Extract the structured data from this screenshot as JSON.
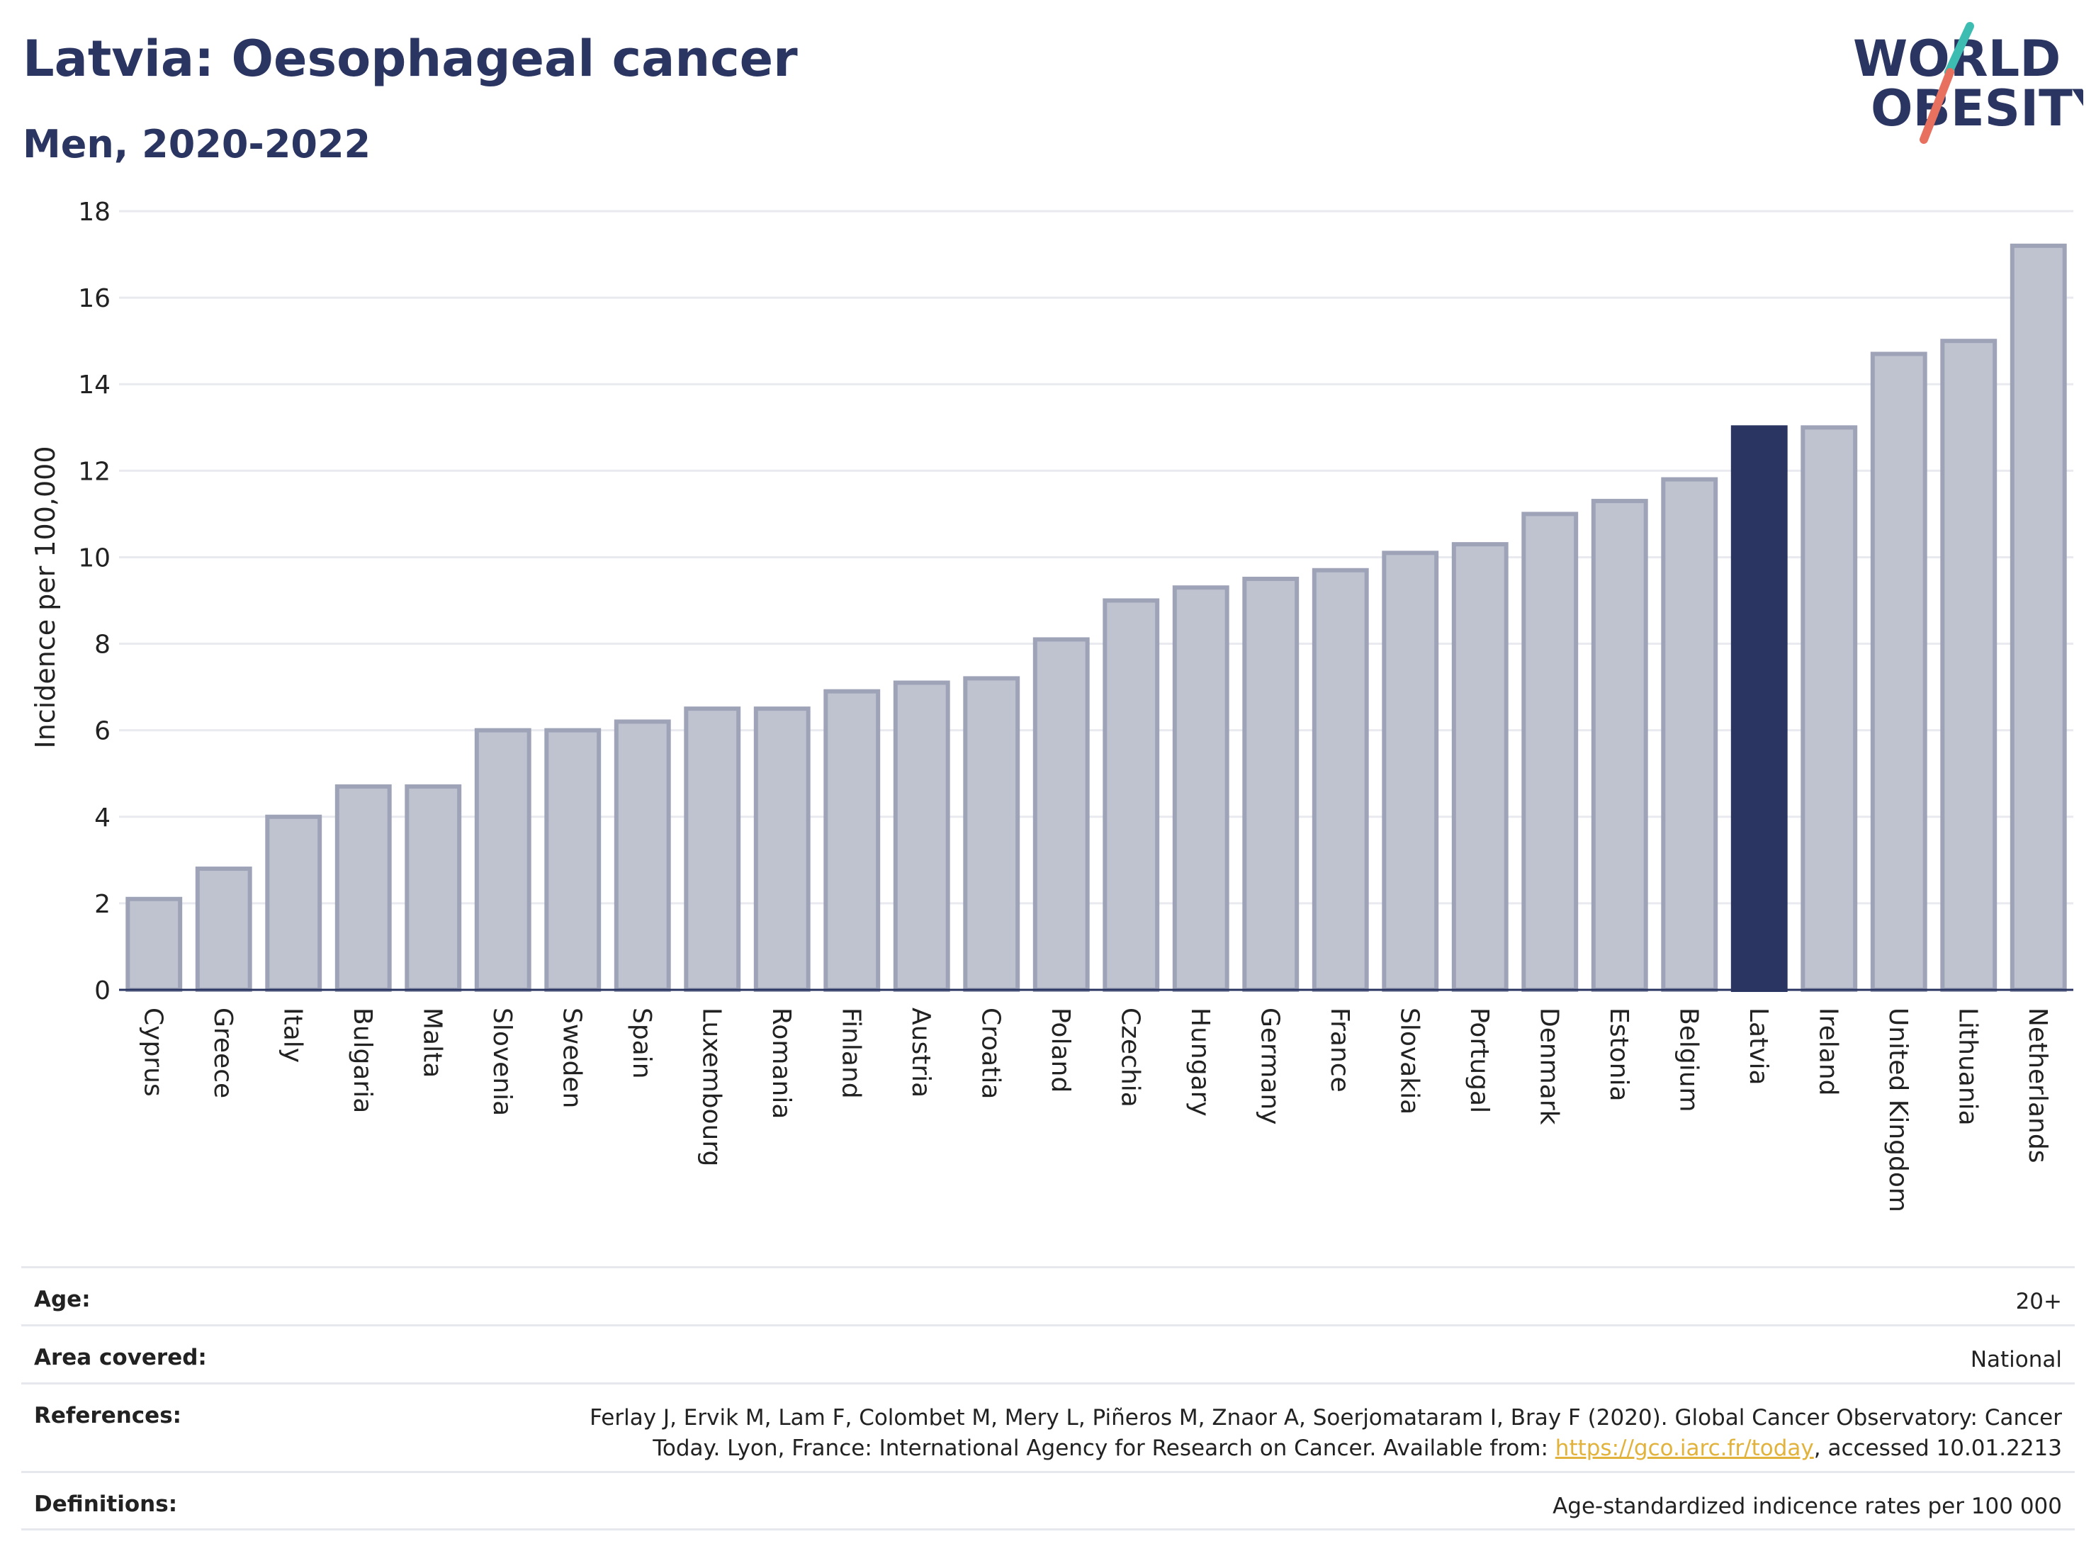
{
  "header": {
    "title": "Latvia: Oesophageal cancer",
    "subtitle": "Men, 2020-2022"
  },
  "logo": {
    "line1": "WORLD",
    "line2": "OBESITY",
    "colors": {
      "text": "#2a3561",
      "slash_top": "#3dbdb1",
      "slash_bottom": "#e8705e"
    }
  },
  "chart_data": {
    "type": "bar",
    "ylabel": "Incidence per 100,000",
    "ylim": [
      0,
      18
    ],
    "yticks": [
      0,
      2,
      4,
      6,
      8,
      10,
      12,
      14,
      16,
      18
    ],
    "grid": true,
    "highlight": "Latvia",
    "colors": {
      "bar": "#bfc3d0",
      "bar_border": "#9ea3b8",
      "highlight": "#2a3561"
    },
    "categories": [
      "Cyprus",
      "Greece",
      "Italy",
      "Bulgaria",
      "Malta",
      "Slovenia",
      "Sweden",
      "Spain",
      "Luxembourg",
      "Romania",
      "Finland",
      "Austria",
      "Croatia",
      "Poland",
      "Czechia",
      "Hungary",
      "Germany",
      "France",
      "Slovakia",
      "Portugal",
      "Denmark",
      "Estonia",
      "Belgium",
      "Latvia",
      "Ireland",
      "United Kingdom",
      "Lithuania",
      "Netherlands"
    ],
    "values": [
      2.1,
      2.8,
      4.0,
      4.7,
      4.7,
      6.0,
      6.0,
      6.2,
      6.5,
      6.5,
      6.9,
      7.1,
      7.2,
      8.1,
      9.0,
      9.3,
      9.5,
      9.7,
      10.1,
      10.3,
      11.0,
      11.3,
      11.8,
      13.0,
      13.0,
      14.7,
      15.0,
      17.2
    ]
  },
  "meta": {
    "age": {
      "label": "Age:",
      "value": "20+"
    },
    "area": {
      "label": "Area covered:",
      "value": "National"
    },
    "references": {
      "label": "References:",
      "text_line1": "Ferlay J, Ervik M, Lam F, Colombet M, Mery L, Piñeros M, Znaor A, Soerjomataram I, Bray F (2020). Global Cancer Observatory: Cancer",
      "text_line2_before": "Today. Lyon, France: International Agency for Research on Cancer. Available from: ",
      "link": "https://gco.iarc.fr/today",
      "text_line2_after": ", accessed 10.01.2213"
    },
    "definitions": {
      "label": "Definitions:",
      "value": "Age-standardized indicence rates per 100 000"
    }
  }
}
